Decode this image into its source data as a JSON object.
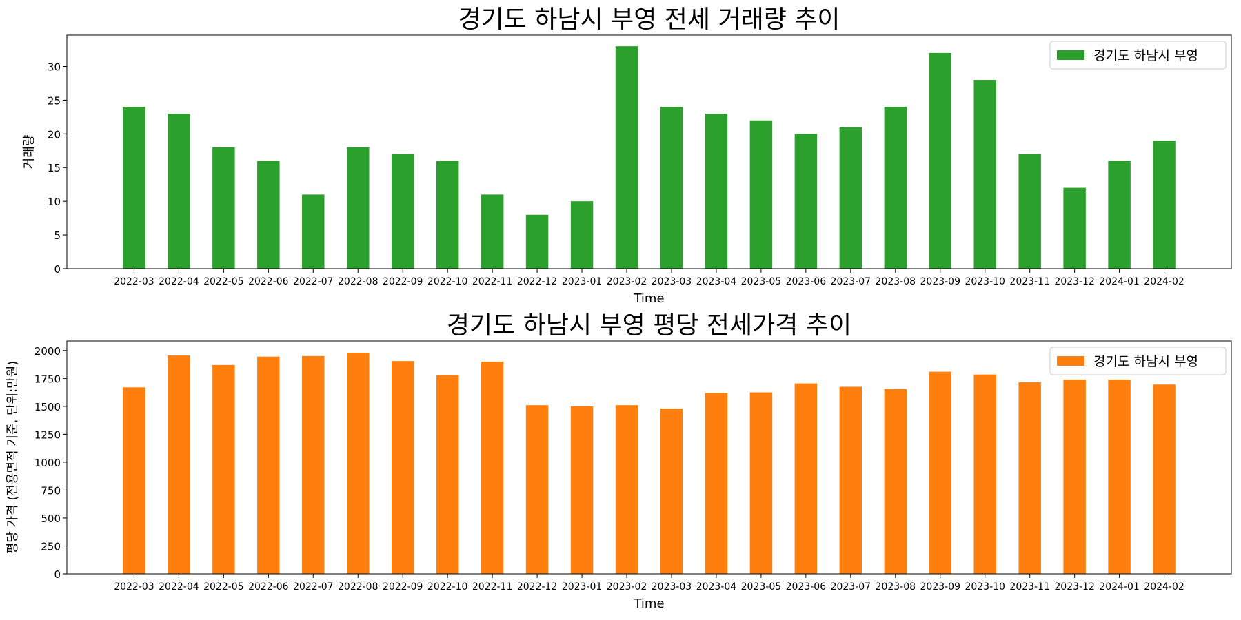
{
  "chart_data": [
    {
      "type": "bar",
      "title": "경기도 하남시 부영 전세 거래량 추이",
      "xlabel": "Time",
      "ylabel": "거래량",
      "ylim": [
        0,
        34.65
      ],
      "yticks": [
        0,
        5,
        10,
        15,
        20,
        25,
        30
      ],
      "legend_position": "top-right",
      "grid": false,
      "categories": [
        "2022-03",
        "2022-04",
        "2022-05",
        "2022-06",
        "2022-07",
        "2022-08",
        "2022-09",
        "2022-10",
        "2022-11",
        "2022-12",
        "2023-01",
        "2023-02",
        "2023-03",
        "2023-04",
        "2023-05",
        "2023-06",
        "2023-07",
        "2023-08",
        "2023-09",
        "2023-10",
        "2023-11",
        "2023-12",
        "2024-01",
        "2024-02"
      ],
      "series": [
        {
          "name": "경기도 하남시 부영",
          "color": "#2ca02c",
          "values": [
            24,
            23,
            18,
            16,
            11,
            18,
            17,
            16,
            11,
            8,
            10,
            33,
            24,
            23,
            22,
            20,
            21,
            24,
            32,
            28,
            17,
            12,
            16,
            19
          ]
        }
      ]
    },
    {
      "type": "bar",
      "title": "경기도 하남시 부영 평당 전세가격 추이",
      "xlabel": "Time",
      "ylabel": "평당 가격 (전용면적 기준, 단위:만원)",
      "ylim": [
        0,
        2085
      ],
      "yticks": [
        0,
        250,
        500,
        750,
        1000,
        1250,
        1500,
        1750,
        2000
      ],
      "legend_position": "top-right",
      "grid": false,
      "categories": [
        "2022-03",
        "2022-04",
        "2022-05",
        "2022-06",
        "2022-07",
        "2022-08",
        "2022-09",
        "2022-10",
        "2022-11",
        "2022-12",
        "2023-01",
        "2023-02",
        "2023-03",
        "2023-04",
        "2023-05",
        "2023-06",
        "2023-07",
        "2023-08",
        "2023-09",
        "2023-10",
        "2023-11",
        "2023-12",
        "2024-01",
        "2024-02"
      ],
      "series": [
        {
          "name": "경기도 하남시 부영",
          "color": "#ff7f0e",
          "values": [
            1670,
            1955,
            1870,
            1945,
            1950,
            1980,
            1905,
            1780,
            1900,
            1510,
            1500,
            1510,
            1480,
            1620,
            1625,
            1705,
            1675,
            1655,
            1810,
            1785,
            1715,
            1740,
            1740,
            1695
          ]
        }
      ]
    }
  ]
}
